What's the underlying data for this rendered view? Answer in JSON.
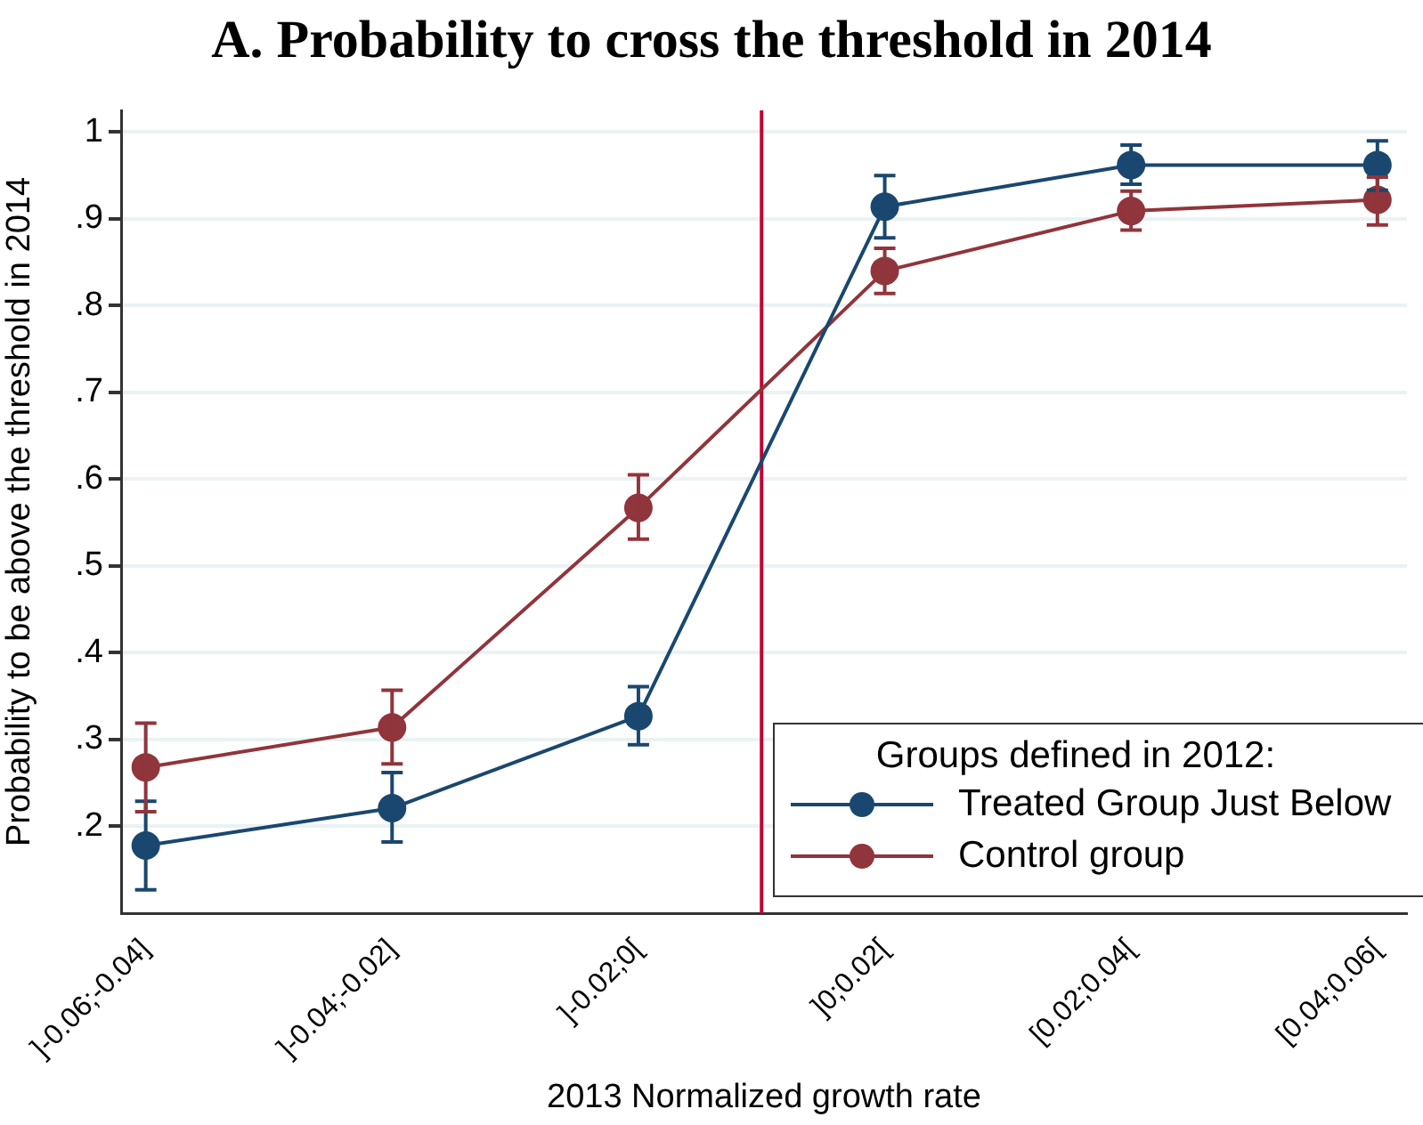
{
  "chart_data": {
    "type": "line",
    "title": "A. Probability to cross the threshold in 2014",
    "xlabel": "2013 Normalized growth rate",
    "ylabel": "Probability to be above the threshold in 2014",
    "legend_title": "Groups defined in 2012:",
    "categories": [
      "]-0.06;-0.04]",
      "]-0.04;-0.02]",
      "]-0.02;0[",
      "]0;0.02[",
      "[0.02;0.04[",
      "[0.04;0.06["
    ],
    "ylim": [
      0.1,
      1.025
    ],
    "yticks": [
      {
        "value": 0.2,
        "label": ".2"
      },
      {
        "value": 0.3,
        "label": ".3"
      },
      {
        "value": 0.4,
        "label": ".4"
      },
      {
        "value": 0.5,
        "label": ".5"
      },
      {
        "value": 0.6,
        "label": ".6"
      },
      {
        "value": 0.7,
        "label": ".7"
      },
      {
        "value": 0.8,
        "label": ".8"
      },
      {
        "value": 0.9,
        "label": ".9"
      },
      {
        "value": 1,
        "label": "1"
      }
    ],
    "series": [
      {
        "name": "Treated Group Just Below",
        "color": "#1a476f",
        "values": [
          0.178,
          0.221,
          0.327,
          0.914,
          0.962,
          0.962
        ],
        "errors": [
          [
            0.127,
            0.229
          ],
          [
            0.182,
            0.262
          ],
          [
            0.294,
            0.361
          ],
          [
            0.878,
            0.95
          ],
          [
            0.94,
            0.985
          ],
          [
            0.933,
            0.99
          ]
        ]
      },
      {
        "name": "Control group",
        "color": "#90353b",
        "values": [
          0.268,
          0.314,
          0.567,
          0.84,
          0.909,
          0.922
        ],
        "errors": [
          [
            0.217,
            0.319
          ],
          [
            0.272,
            0.357
          ],
          [
            0.531,
            0.605
          ],
          [
            0.814,
            0.866
          ],
          [
            0.887,
            0.932
          ],
          [
            0.893,
            0.948
          ]
        ]
      }
    ],
    "ref_lines": [
      {
        "axis": "x",
        "value": "]0;0.02[",
        "color": "#c10534"
      }
    ],
    "grid": "y",
    "legend": "bottom right",
    "marker": "circle",
    "line_style": "solid"
  }
}
